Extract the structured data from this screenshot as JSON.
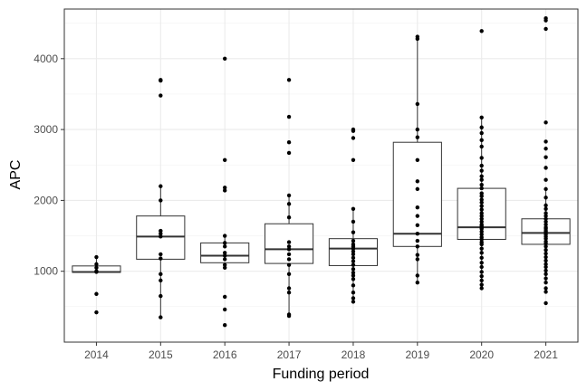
{
  "chart_data": {
    "type": "box",
    "xlabel": "Funding period",
    "ylabel": "APC",
    "ylim": [
      0,
      4700
    ],
    "yticks": [
      1000,
      2000,
      3000,
      4000
    ],
    "grid": true,
    "theme": "bw",
    "categories": [
      "2014",
      "2015",
      "2016",
      "2017",
      "2018",
      "2019",
      "2020",
      "2021"
    ],
    "boxes": [
      {
        "category": "2014",
        "q1": 985,
        "median": 990,
        "q3": 1075
      },
      {
        "category": "2015",
        "q1": 1170,
        "median": 1490,
        "q3": 1780
      },
      {
        "category": "2016",
        "q1": 1120,
        "median": 1220,
        "q3": 1400
      },
      {
        "category": "2017",
        "q1": 1110,
        "median": 1310,
        "q3": 1670
      },
      {
        "category": "2018",
        "q1": 1080,
        "median": 1320,
        "q3": 1460
      },
      {
        "category": "2019",
        "q1": 1350,
        "median": 1530,
        "q3": 2820
      },
      {
        "category": "2020",
        "q1": 1450,
        "median": 1620,
        "q3": 2170
      },
      {
        "category": "2021",
        "q1": 1380,
        "median": 1540,
        "q3": 1740
      }
    ],
    "points": {
      "2014": [
        1200,
        1100,
        1050,
        1000,
        990,
        680,
        420
      ],
      "2015": [
        3700,
        3690,
        3480,
        2200,
        2000,
        1570,
        1530,
        1490,
        1240,
        1180,
        960,
        870,
        650,
        350
      ],
      "2016": [
        4000,
        2570,
        2180,
        2140,
        1500,
        1400,
        1350,
        1260,
        1220,
        1170,
        1090,
        1050,
        640,
        460,
        240
      ],
      "2017": [
        3700,
        3180,
        2820,
        2670,
        2070,
        1950,
        1760,
        1410,
        1350,
        1310,
        1240,
        1170,
        1090,
        960,
        760,
        700,
        390,
        370
      ],
      "2018": [
        3000,
        2980,
        2880,
        2570,
        1880,
        1700,
        1550,
        1430,
        1380,
        1350,
        1320,
        1280,
        1240,
        1190,
        1140,
        1090,
        1030,
        980,
        940,
        890,
        800,
        700,
        620,
        570
      ],
      "2019": [
        4310,
        4280,
        3360,
        3000,
        2890,
        2570,
        2270,
        2160,
        1900,
        1780,
        1650,
        1530,
        1430,
        1350,
        1230,
        1170,
        940,
        840
      ],
      "2020": [
        4390,
        3170,
        3030,
        2950,
        2850,
        2760,
        2600,
        2490,
        2420,
        2340,
        2290,
        2220,
        2170,
        2100,
        2060,
        2010,
        1970,
        1920,
        1870,
        1820,
        1780,
        1740,
        1700,
        1660,
        1640,
        1620,
        1600,
        1560,
        1520,
        1480,
        1450,
        1410,
        1380,
        1320,
        1260,
        1190,
        1120,
        1060,
        990,
        930,
        870,
        810,
        760
      ],
      "2021": [
        4570,
        4540,
        4420,
        3100,
        2830,
        2730,
        2610,
        2460,
        2290,
        2160,
        2040,
        1930,
        1880,
        1820,
        1780,
        1740,
        1700,
        1660,
        1620,
        1600,
        1570,
        1550,
        1520,
        1490,
        1460,
        1420,
        1390,
        1350,
        1300,
        1250,
        1200,
        1150,
        1100,
        1060,
        1010,
        960,
        900,
        840,
        760,
        710,
        550
      ]
    }
  }
}
